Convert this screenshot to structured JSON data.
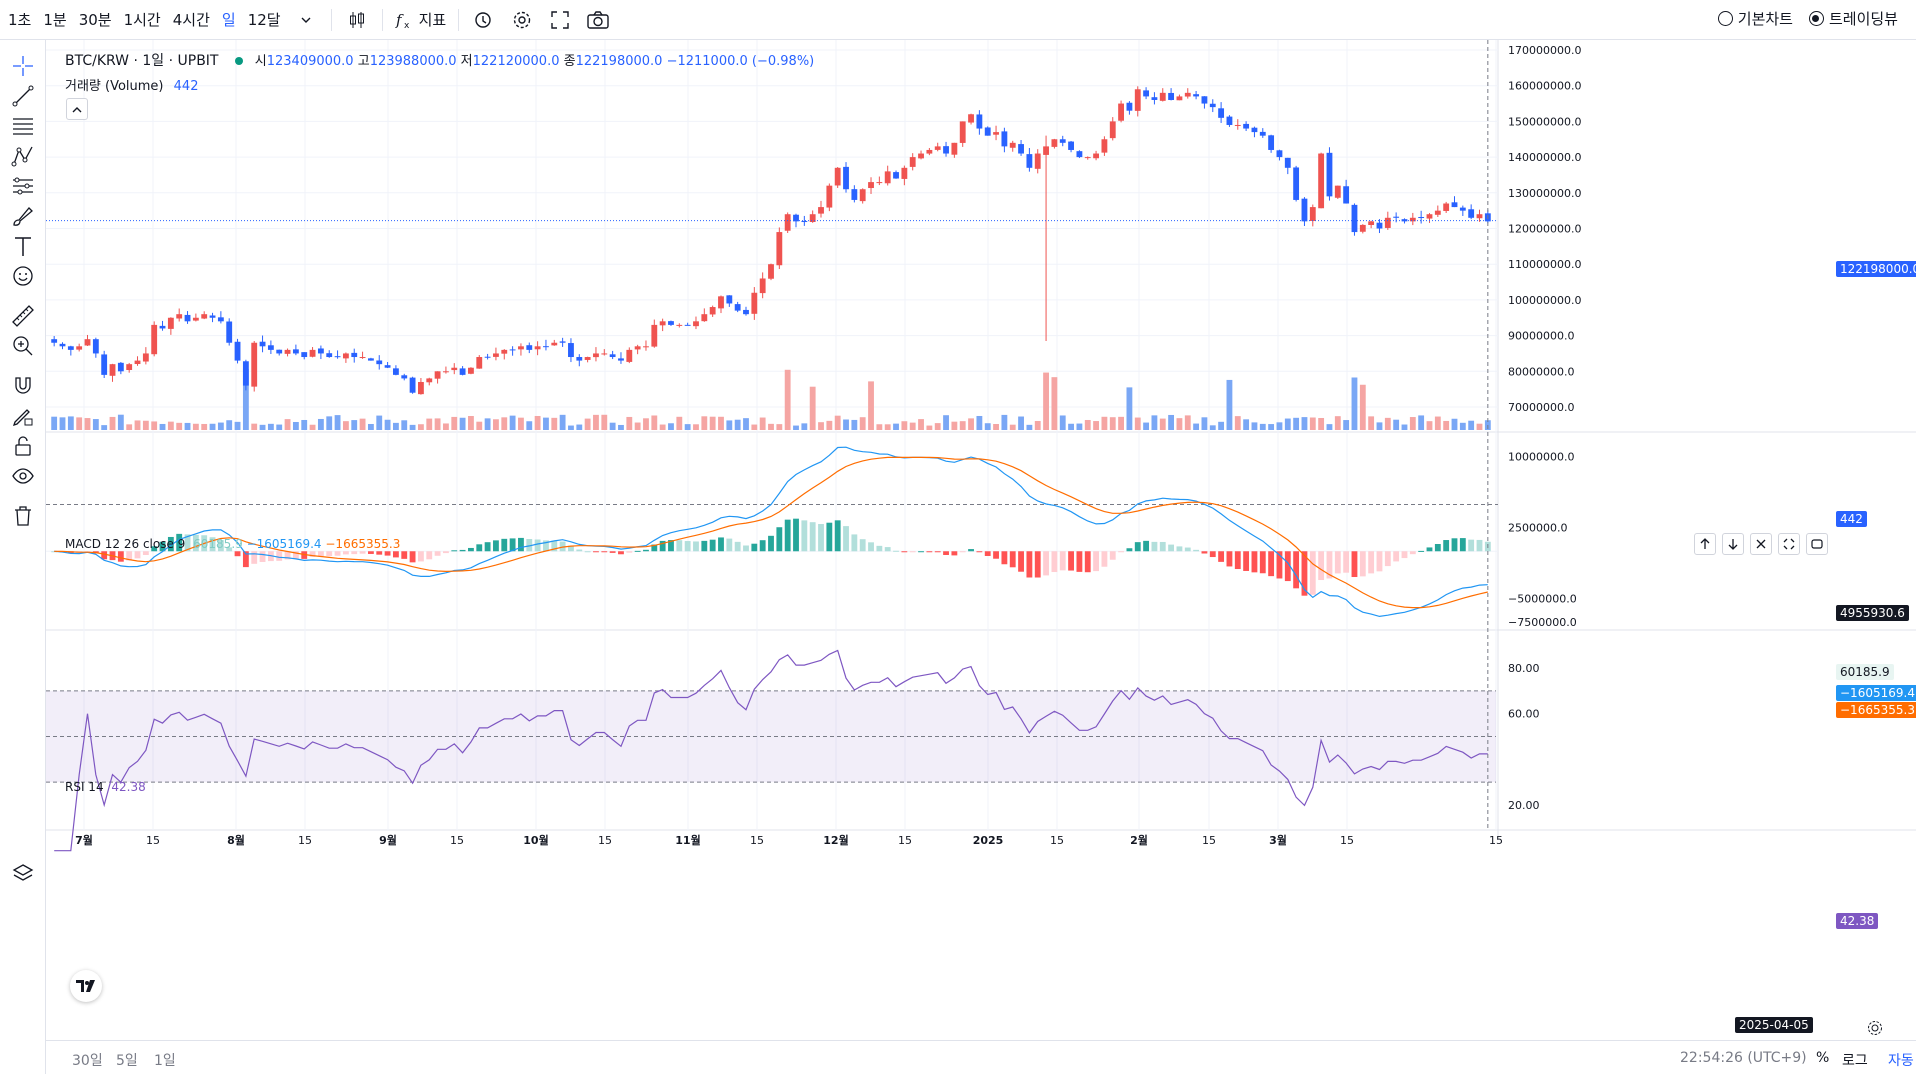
{
  "toolbar": {
    "timeframes": [
      "1초",
      "1분",
      "30분",
      "1시간",
      "4시간",
      "일",
      "12달"
    ],
    "active_timeframe": "일",
    "indicators_label": "지표",
    "views": [
      "기본차트",
      "트레이딩뷰"
    ],
    "active_view": "트레이딩뷰"
  },
  "legend": {
    "symbol": "BTC/KRW · 1일 · UPBIT",
    "open_label": "시",
    "open": "123409000.0",
    "high_label": "고",
    "high": "123988000.0",
    "low_label": "저",
    "low": "122120000.0",
    "close_label": "종",
    "close": "122198000.0",
    "change": "−1211000.0 (−0.98%)",
    "volume_label": "거래량 (Volume)",
    "volume": "442",
    "macd_label": "MACD 12 26 close 9",
    "macd_hist": "60185.9",
    "macd_line": "−1605169.4",
    "macd_signal": "−1665355.3",
    "rsi_label": "RSI 14",
    "rsi": "42.38"
  },
  "price_axis": {
    "main_ticks": [
      "170000000.0",
      "160000000.0",
      "150000000.0",
      "140000000.0",
      "130000000.0",
      "120000000.0",
      "110000000.0",
      "100000000.0",
      "90000000.0",
      "80000000.0",
      "70000000.0"
    ],
    "last_price": "122198000.0",
    "volume_tag": "442",
    "macd_ticks": [
      "10000000.0",
      "2500000.0",
      "−5000000.0",
      "−7500000.0"
    ],
    "macd_level": "4955930.6",
    "macd_hist_tag": "60185.9",
    "macd_line_tag": "−1605169.4",
    "macd_signal_tag": "−1665355.3",
    "rsi_ticks": [
      "80.00",
      "60.00",
      "20.00"
    ],
    "rsi_tag": "42.38"
  },
  "time_axis": {
    "labels": [
      "7월",
      "15",
      "8월",
      "15",
      "9월",
      "15",
      "10월",
      "15",
      "11월",
      "15",
      "12월",
      "15",
      "2025",
      "15",
      "2월",
      "15",
      "3월",
      "15",
      "15"
    ],
    "cursor_date": "2025-04-05"
  },
  "bottom": {
    "ranges": [
      "30일",
      "5일",
      "1일"
    ],
    "clock": "22:54:26 (UTC+9)",
    "percent": "%",
    "log": "로그",
    "auto": "자동"
  },
  "colors": {
    "up": "#ef5350",
    "down": "#2962ff",
    "macd": "#2196f3",
    "signal": "#ff6d00",
    "rsi": "#7e57c2"
  },
  "chart_data": {
    "type": "candlestick",
    "title": "BTC/KRW · 1일 · UPBIT",
    "ylim": [
      65000000,
      175000000
    ],
    "closes_millions": [
      88,
      87,
      86,
      87,
      89,
      85,
      79,
      82,
      80,
      82,
      83,
      85,
      93,
      92,
      95,
      96,
      94,
      95,
      96,
      95,
      94,
      88,
      83,
      76,
      88,
      87,
      86,
      85,
      86,
      85,
      84,
      86,
      85,
      84,
      84,
      85,
      84,
      84,
      83,
      82,
      81,
      79,
      78,
      74,
      77,
      78,
      80,
      80,
      81,
      79,
      81,
      84,
      84,
      85,
      86,
      86,
      87,
      86,
      87,
      87,
      88,
      88,
      84,
      83,
      84,
      85,
      85,
      84,
      83,
      86,
      87,
      87,
      93,
      94,
      93,
      93,
      93,
      94,
      96,
      98,
      101,
      99,
      97,
      96,
      102,
      106,
      110,
      119,
      124,
      122,
      122,
      124,
      126,
      132,
      137,
      131,
      128,
      131,
      133,
      133,
      136,
      134,
      137,
      140,
      141,
      142,
      143,
      141,
      144,
      150,
      152,
      148,
      146,
      147,
      143,
      144,
      141,
      137,
      141,
      143,
      145,
      144,
      142,
      140,
      140,
      141,
      145,
      150,
      155,
      153,
      159,
      157,
      156,
      158,
      156,
      157,
      158,
      157,
      155,
      154,
      151,
      149,
      149,
      148,
      147,
      146,
      142,
      140,
      137,
      128,
      122,
      126,
      141,
      129,
      132,
      127,
      119,
      121,
      122,
      120,
      123,
      123,
      122,
      123,
      123,
      124,
      125,
      127,
      126,
      125,
      123,
      124,
      122
    ],
    "volume_note": "bars colored by candle direction",
    "macd": {
      "fast": 12,
      "slow": 26,
      "signal": 9
    },
    "rsi": {
      "period": 14,
      "upper": 70,
      "middle": 50,
      "lower": 30,
      "last": 42.38
    }
  }
}
